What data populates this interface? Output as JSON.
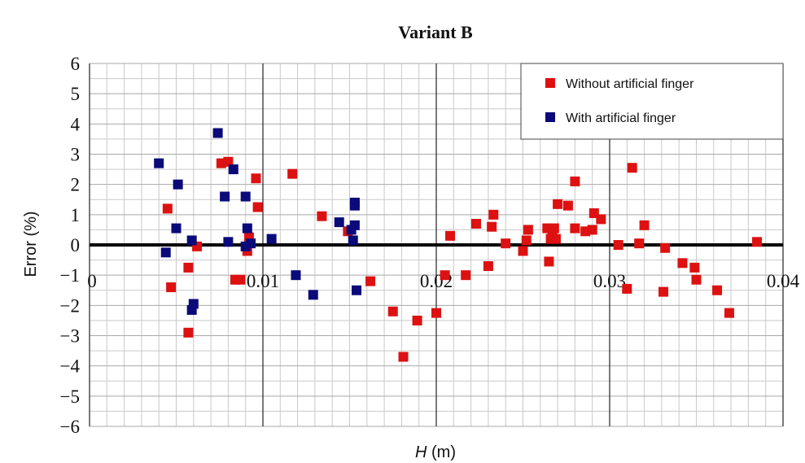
{
  "chart_data": {
    "type": "scatter",
    "title": "Variant B",
    "xlabel": {
      "symbol": "H",
      "unit": " (m)"
    },
    "ylabel": "Error (%)",
    "xlim": [
      0,
      0.04
    ],
    "ylim": [
      -6,
      6
    ],
    "x_ticks": [
      "0",
      "0.01",
      "0.02",
      "0.03",
      "0.04"
    ],
    "y_ticks": [
      "6",
      "5",
      "4",
      "3",
      "2",
      "1",
      "0",
      "−1",
      "−2",
      "−3",
      "−4",
      "−5",
      "−6"
    ],
    "y_tick_values": [
      6,
      5,
      4,
      3,
      2,
      1,
      0,
      -1,
      -2,
      -3,
      -4,
      -5,
      -6
    ],
    "x_tick_values": [
      0,
      0.01,
      0.02,
      0.03,
      0.04
    ],
    "grid": true,
    "zero_line": true,
    "legend_position": "top-right",
    "series": [
      {
        "name": "Without artificial finger",
        "color": "#dd1111",
        "points": [
          [
            0.0045,
            1.2
          ],
          [
            0.0047,
            -1.4
          ],
          [
            0.0057,
            -0.75
          ],
          [
            0.0057,
            -2.9
          ],
          [
            0.0062,
            -0.05
          ],
          [
            0.0076,
            2.7
          ],
          [
            0.008,
            2.75
          ],
          [
            0.0084,
            -1.15
          ],
          [
            0.0087,
            -1.15
          ],
          [
            0.0091,
            -0.2
          ],
          [
            0.0092,
            0.25
          ],
          [
            0.0096,
            2.2
          ],
          [
            0.0097,
            1.25
          ],
          [
            0.0117,
            2.35
          ],
          [
            0.0134,
            0.95
          ],
          [
            0.0149,
            0.45
          ],
          [
            0.0162,
            -1.2
          ],
          [
            0.0175,
            -2.2
          ],
          [
            0.0181,
            -3.7
          ],
          [
            0.0189,
            -2.5
          ],
          [
            0.02,
            -2.25
          ],
          [
            0.0205,
            -1.0
          ],
          [
            0.0208,
            0.3
          ],
          [
            0.0217,
            -1.0
          ],
          [
            0.0223,
            0.7
          ],
          [
            0.023,
            -0.7
          ],
          [
            0.0232,
            0.6
          ],
          [
            0.0233,
            1.0
          ],
          [
            0.024,
            0.05
          ],
          [
            0.025,
            -0.2
          ],
          [
            0.0252,
            0.15
          ],
          [
            0.0253,
            0.5
          ],
          [
            0.0264,
            0.55
          ],
          [
            0.0265,
            -0.55
          ],
          [
            0.0266,
            0.2
          ],
          [
            0.0267,
            0.4
          ],
          [
            0.0268,
            0.55
          ],
          [
            0.0269,
            0.2
          ],
          [
            0.027,
            1.35
          ],
          [
            0.0276,
            1.3
          ],
          [
            0.028,
            2.1
          ],
          [
            0.028,
            0.55
          ],
          [
            0.0286,
            0.45
          ],
          [
            0.029,
            0.5
          ],
          [
            0.0291,
            1.05
          ],
          [
            0.0295,
            0.85
          ],
          [
            0.0305,
            0.0
          ],
          [
            0.031,
            -1.45
          ],
          [
            0.0313,
            2.55
          ],
          [
            0.0317,
            0.05
          ],
          [
            0.032,
            0.65
          ],
          [
            0.0331,
            -1.55
          ],
          [
            0.0332,
            -0.1
          ],
          [
            0.0342,
            -0.6
          ],
          [
            0.0349,
            -0.75
          ],
          [
            0.035,
            -1.15
          ],
          [
            0.0362,
            -1.5
          ],
          [
            0.0369,
            -2.25
          ],
          [
            0.0385,
            0.1
          ]
        ]
      },
      {
        "name": "With artificial finger",
        "color": "#0a0a7a",
        "points": [
          [
            0.004,
            2.7
          ],
          [
            0.0044,
            -0.25
          ],
          [
            0.005,
            0.55
          ],
          [
            0.0051,
            2.0
          ],
          [
            0.0059,
            0.15
          ],
          [
            0.0059,
            -2.15
          ],
          [
            0.006,
            -1.95
          ],
          [
            0.0074,
            3.7
          ],
          [
            0.0078,
            1.6
          ],
          [
            0.008,
            0.1
          ],
          [
            0.0083,
            2.5
          ],
          [
            0.009,
            1.6
          ],
          [
            0.009,
            -0.05
          ],
          [
            0.0091,
            0.55
          ],
          [
            0.0093,
            0.05
          ],
          [
            0.0105,
            0.2
          ],
          [
            0.0119,
            -1.0
          ],
          [
            0.0129,
            -1.65
          ],
          [
            0.0144,
            0.75
          ],
          [
            0.0151,
            0.5
          ],
          [
            0.0152,
            0.15
          ],
          [
            0.0153,
            1.3
          ],
          [
            0.0153,
            1.4
          ],
          [
            0.0153,
            0.65
          ],
          [
            0.0154,
            -1.5
          ]
        ]
      }
    ]
  }
}
